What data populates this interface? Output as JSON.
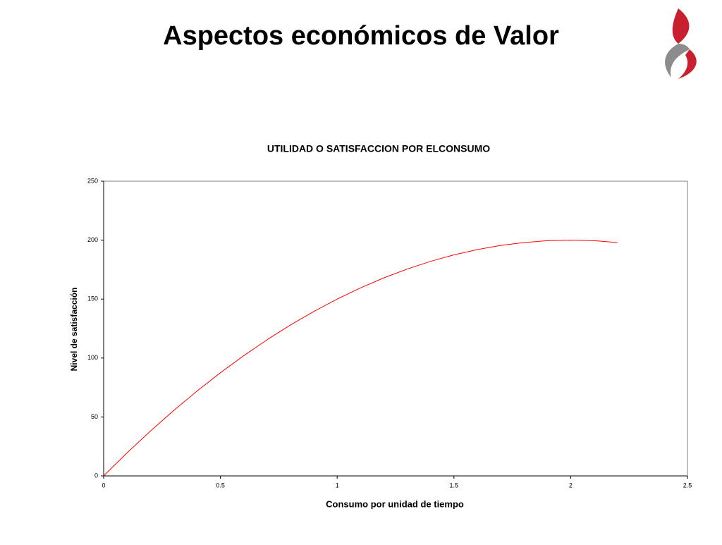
{
  "header": {
    "title": "Aspectos económicos de Valor"
  },
  "chart_data": {
    "type": "line",
    "title": "UTILIDAD O SATISFACCION POR ELCONSUMO",
    "x_label": "Consumo por unidad de tiempo",
    "y_label": "Nivel de satisfacción",
    "x": [
      0,
      0.1,
      0.2,
      0.3,
      0.4,
      0.5,
      0.6,
      0.7,
      0.8,
      0.9,
      1,
      1.1,
      1.2,
      1.3,
      1.4,
      1.5,
      1.6,
      1.7,
      1.8,
      1.9,
      2,
      2.1,
      2.2
    ],
    "series": [
      {
        "color": "#ff0000",
        "values": [
          0,
          19.5,
          38,
          55.5,
          72,
          87.5,
          102,
          115.5,
          128,
          139.5,
          150,
          159.5,
          168,
          175.5,
          182,
          187.5,
          192,
          195.5,
          198,
          199.5,
          200,
          199.5,
          198
        ]
      }
    ],
    "xlim": [
      0,
      2.5
    ],
    "xticks": [
      0,
      0.5,
      1,
      1.5,
      2,
      2.5
    ],
    "ylim": [
      0,
      250
    ],
    "yticks": [
      0,
      50,
      100,
      150,
      200,
      250
    ],
    "grid": false
  }
}
